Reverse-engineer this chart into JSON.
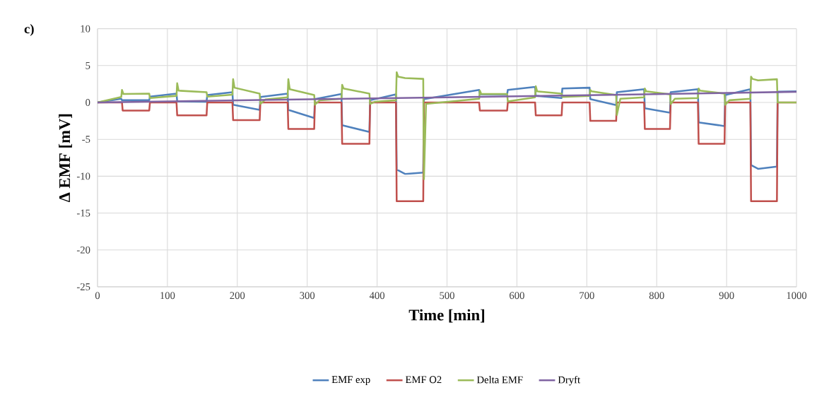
{
  "chart_data": {
    "type": "line",
    "xlabel": "Time [min]",
    "ylabel": "Δ EMF [mV]",
    "annotations": [
      "c)"
    ],
    "xlim": [
      0,
      1000
    ],
    "xticks": [
      0,
      100,
      200,
      300,
      400,
      500,
      600,
      700,
      800,
      900,
      1000
    ],
    "ylim": [
      -25,
      10
    ],
    "yticks": [
      -25,
      -20,
      -15,
      -10,
      -5,
      0,
      5,
      10
    ],
    "grid": true,
    "legend": "bottom",
    "series": [
      {
        "name": "EMF exp",
        "color": "#4f81bd",
        "x": [
          0,
          34,
          35,
          74,
          75,
          113,
          114,
          156,
          157,
          193,
          194,
          232,
          233,
          272,
          273,
          310,
          311,
          349,
          350,
          389,
          390,
          427,
          428,
          440,
          466,
          467,
          546,
          547,
          586,
          587,
          626,
          627,
          664,
          665,
          704,
          705,
          742,
          743,
          782,
          783,
          819,
          820,
          859,
          860,
          897,
          898,
          934,
          935,
          945,
          972,
          973,
          1000
        ],
        "values": [
          0,
          0.5,
          0.3,
          0.3,
          0.8,
          1.2,
          0.15,
          0.1,
          1.0,
          1.4,
          -0.3,
          -1.0,
          0.75,
          1.2,
          -1.0,
          -2.1,
          0.45,
          1.15,
          -3.1,
          -4.0,
          0.3,
          1.1,
          -9.1,
          -9.7,
          -9.5,
          0.45,
          1.7,
          1.1,
          1.1,
          1.7,
          2.1,
          0.9,
          0.6,
          1.9,
          2.0,
          0.45,
          -0.35,
          1.4,
          1.8,
          -0.8,
          -1.4,
          1.4,
          1.8,
          -2.7,
          -3.2,
          1.0,
          1.8,
          -8.5,
          -9.0,
          -8.7,
          1.45,
          1.5
        ]
      },
      {
        "name": "EMF O2",
        "color": "#c0504d",
        "x": [
          0,
          35,
          36,
          74,
          75,
          113,
          114,
          156,
          157,
          193,
          194,
          232,
          233,
          272,
          273,
          310,
          311,
          349,
          350,
          389,
          390,
          427,
          428,
          466,
          467,
          546,
          547,
          586,
          587,
          626,
          627,
          664,
          665,
          704,
          705,
          742,
          743,
          782,
          783,
          819,
          820,
          859,
          860,
          897,
          898,
          934,
          935,
          972,
          973,
          1000
        ],
        "values": [
          0,
          0,
          -1.1,
          -1.1,
          0,
          0,
          -1.75,
          -1.75,
          0,
          0,
          -2.4,
          -2.4,
          0,
          0,
          -3.6,
          -3.6,
          0,
          0,
          -5.6,
          -5.6,
          0,
          0,
          -13.4,
          -13.4,
          0,
          0,
          -1.1,
          -1.1,
          0,
          0,
          -1.75,
          -1.75,
          0,
          0,
          -2.5,
          -2.5,
          0,
          0,
          -3.6,
          -3.6,
          0,
          0,
          -5.6,
          -5.6,
          0,
          0,
          -13.4,
          -13.4,
          0,
          0
        ]
      },
      {
        "name": "Delta EMF",
        "color": "#9bbb59",
        "x": [
          0,
          34,
          35,
          37,
          74,
          75,
          113,
          114,
          116,
          156,
          157,
          193,
          194,
          196,
          232,
          233,
          240,
          272,
          273,
          275,
          310,
          311,
          318,
          349,
          350,
          352,
          389,
          390,
          397,
          427,
          428,
          430,
          440,
          466,
          467,
          470,
          546,
          547,
          549,
          586,
          587,
          626,
          627,
          629,
          664,
          665,
          704,
          705,
          707,
          742,
          743,
          748,
          782,
          783,
          785,
          819,
          820,
          826,
          859,
          860,
          862,
          897,
          898,
          904,
          934,
          935,
          937,
          945,
          972,
          973,
          1000
        ],
        "values": [
          0,
          0.75,
          1.7,
          1.15,
          1.2,
          0.6,
          0.9,
          2.6,
          1.6,
          1.4,
          0.8,
          1.05,
          3.15,
          2.0,
          1.2,
          -0.2,
          0.4,
          0.7,
          3.15,
          1.8,
          1.0,
          -0.3,
          0.3,
          0.5,
          2.4,
          1.9,
          1.2,
          -0.2,
          0.1,
          0.3,
          4.1,
          3.5,
          3.3,
          3.2,
          -10.4,
          -0.2,
          0.5,
          1.6,
          1.15,
          1.15,
          0.15,
          0.7,
          2.2,
          1.5,
          1.2,
          0.75,
          0.9,
          1.7,
          1.5,
          1.0,
          -1.7,
          0.5,
          0.7,
          1.9,
          1.5,
          1.1,
          -0.2,
          0.5,
          0.6,
          1.9,
          1.6,
          1.2,
          -0.3,
          0.3,
          0.5,
          3.5,
          3.2,
          3.0,
          3.15,
          0.0,
          0.0
        ]
      },
      {
        "name": "Dryft",
        "color": "#8064a2",
        "x": [
          0,
          250,
          500,
          750,
          1000
        ],
        "values": [
          0,
          0.35,
          0.7,
          1.05,
          1.45
        ]
      }
    ]
  }
}
